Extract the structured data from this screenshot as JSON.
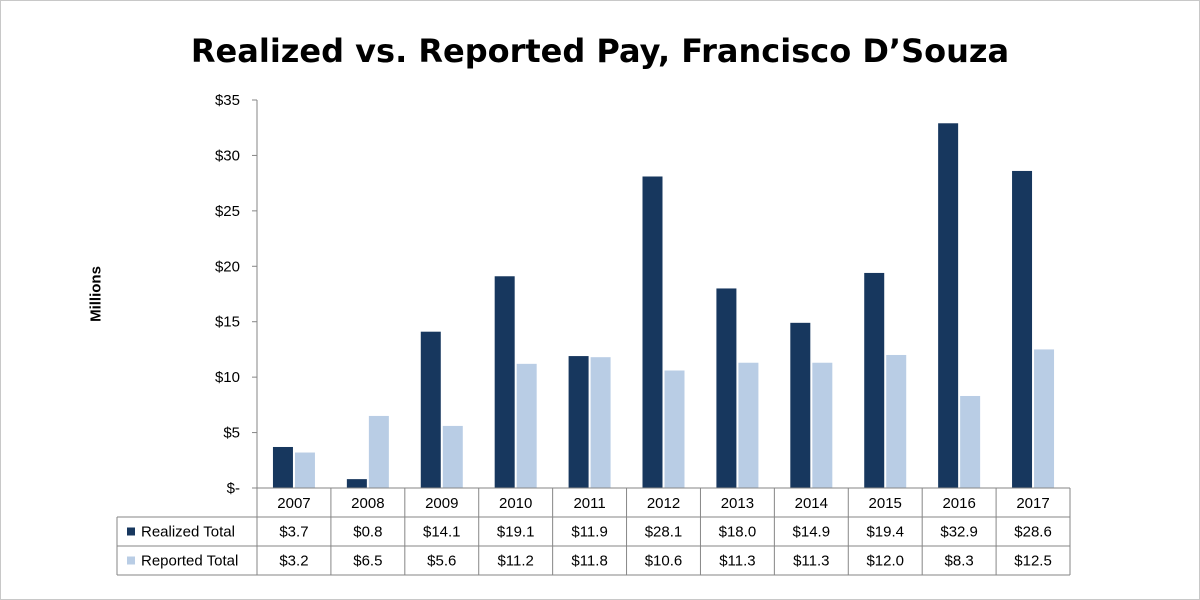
{
  "chart_data": {
    "type": "bar",
    "title": "Realized vs. Reported Pay, Francisco D’Souza",
    "xlabel": "",
    "ylabel": "Millions",
    "ylim": [
      0,
      35
    ],
    "yticks": [
      0,
      5,
      10,
      15,
      20,
      25,
      30,
      35
    ],
    "ytick_labels": [
      "$-",
      "$5",
      "$10",
      "$15",
      "$20",
      "$25",
      "$30",
      "$35"
    ],
    "grid": false,
    "legend": "data-table",
    "categories": [
      "2007",
      "2008",
      "2009",
      "2010",
      "2011",
      "2012",
      "2013",
      "2014",
      "2015",
      "2016",
      "2017"
    ],
    "series": [
      {
        "name": "Realized Total",
        "color": "#17375e",
        "values": [
          3.7,
          0.8,
          14.1,
          19.1,
          11.9,
          28.1,
          18.0,
          14.9,
          19.4,
          32.9,
          28.6
        ],
        "labels": [
          "$3.7",
          "$0.8",
          "$14.1",
          "$19.1",
          "$11.9",
          "$28.1",
          "$18.0",
          "$14.9",
          "$19.4",
          "$32.9",
          "$28.6"
        ]
      },
      {
        "name": "Reported Total",
        "color": "#b9cde5",
        "values": [
          3.2,
          6.5,
          5.6,
          11.2,
          11.8,
          10.6,
          11.3,
          11.3,
          12.0,
          8.3,
          12.5
        ],
        "labels": [
          "$3.2",
          "$6.5",
          "$5.6",
          "$11.2",
          "$11.8",
          "$10.6",
          "$11.3",
          "$11.3",
          "$12.0",
          "$8.3",
          "$12.5"
        ]
      }
    ]
  }
}
